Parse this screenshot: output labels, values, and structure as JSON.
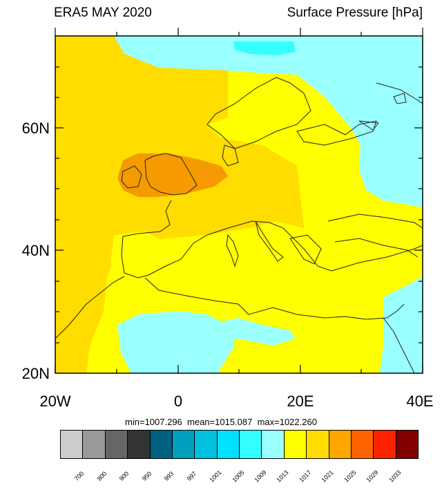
{
  "header": {
    "left_title": "ERA5 MAY 2020",
    "right_title": "Surface Pressure [hPa]"
  },
  "map": {
    "lat_labels": [
      "60N",
      "40N",
      "20N"
    ],
    "lon_labels": [
      "20W",
      "0",
      "20E",
      "40E"
    ],
    "field_colors": {
      "cyan_1009": "#99ffff",
      "cyan_1005": "#33ffff",
      "yellow_1013": "#ffff00",
      "gold_1017": "#ffdd00",
      "orange_1021": "#f59a00",
      "coast": "#222222"
    }
  },
  "stats": "min=1007.296  mean=1015.087  max=1022.260",
  "colorbar": {
    "colors": [
      "#cccccc",
      "#999999",
      "#666666",
      "#333333",
      "#00607f",
      "#00a0c0",
      "#00c0e0",
      "#00e0ff",
      "#33ffff",
      "#99ffff",
      "#ffff00",
      "#ffdd00",
      "#ffa500",
      "#ff6400",
      "#ff2200",
      "#800000"
    ],
    "labels": [
      "700",
      "800",
      "900",
      "950",
      "993",
      "997",
      "1001",
      "1005",
      "1009",
      "1013",
      "1017",
      "1021",
      "1025",
      "1029",
      "1033"
    ]
  }
}
